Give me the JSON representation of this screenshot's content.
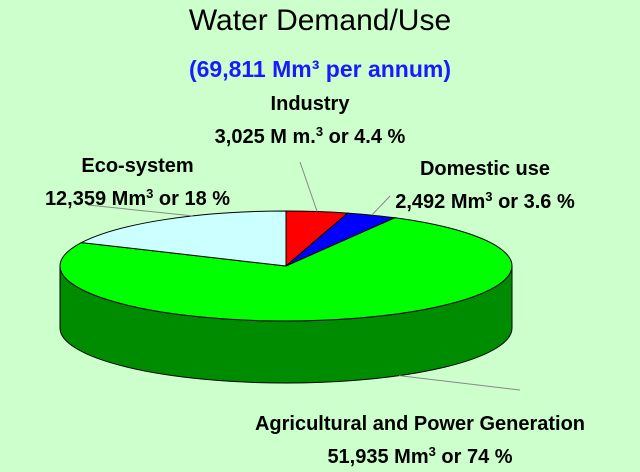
{
  "title": "Water Demand/Use",
  "subtitle": "(69,811 Mm³ per annum)",
  "colors": {
    "background": "#ccffcc",
    "subtitle": "#1a1aff",
    "industry": "#ff0000",
    "domestic": "#0000ff",
    "agricultural": "#00ff00",
    "eco_system": "#ccffff"
  },
  "chart_data": {
    "type": "pie",
    "title": "Water Demand/Use",
    "subtitle": "(69,811 Mm³ per annum)",
    "style": "3d",
    "slices": [
      {
        "name": "Industry",
        "value": 3025,
        "percent": 4.4,
        "color": "#ff0000"
      },
      {
        "name": "Domestic use",
        "value": 2492,
        "percent": 3.6,
        "color": "#0000ff"
      },
      {
        "name": "Agricultural and Power Generation",
        "value": 51935,
        "percent": 74,
        "color": "#00ff00"
      },
      {
        "name": "Eco-system",
        "value": 12359,
        "percent": 18,
        "color": "#ccffff"
      }
    ]
  },
  "labels": {
    "industry": {
      "name": "Industry",
      "pre": "3,025 M m.",
      "sup": "3",
      "post": " or 4.4 %"
    },
    "eco": {
      "name": "Eco-system",
      "pre": "12,359 Mm",
      "sup": "3",
      "post": " or 18 %"
    },
    "domestic": {
      "name": "Domestic use",
      "pre": "2,492 Mm",
      "sup": "3",
      "post": " or 3.6 %"
    },
    "agri": {
      "name": "Agricultural and Power Generation",
      "pre": "51,935 Mm",
      "sup": "3",
      "post": " or 74 %"
    }
  }
}
